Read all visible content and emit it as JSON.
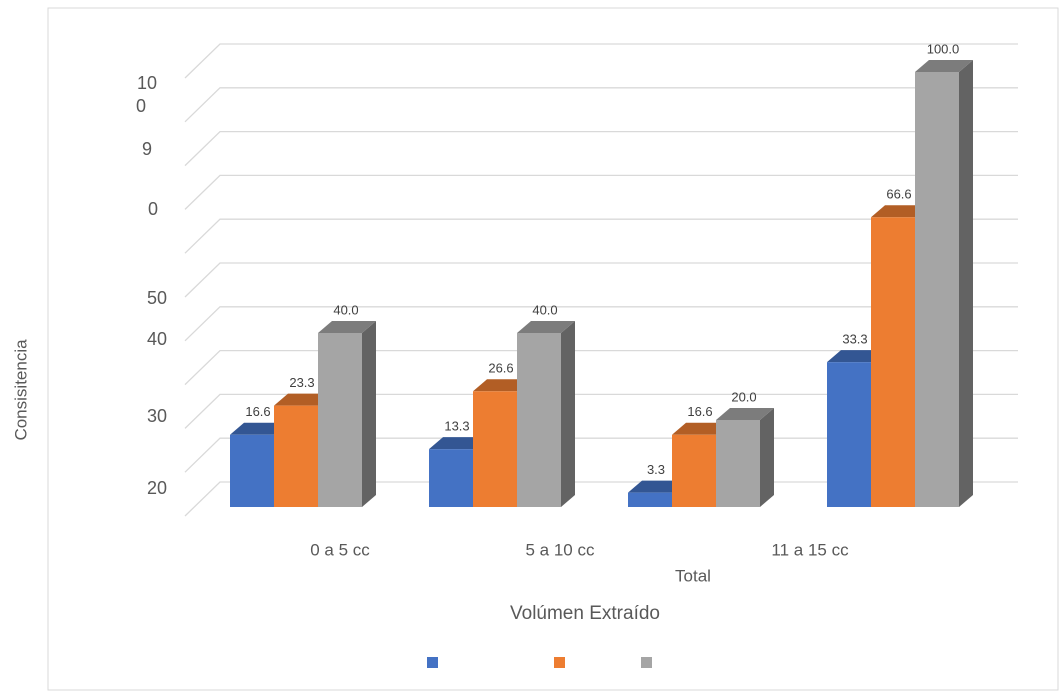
{
  "chart_data": {
    "type": "bar3d",
    "y_axis_label": "Consisitencia",
    "x_axis_label": "Volúmen Extraído",
    "categories": [
      "0 a 5 cc",
      "5 a 10 cc",
      "11 a 15 cc",
      "Total"
    ],
    "y_tick_texts": [
      "10",
      "0",
      "9",
      "0",
      "50",
      "40",
      "30",
      "20"
    ],
    "ylim": [
      0,
      100
    ],
    "yticks": [
      0,
      10,
      20,
      30,
      40,
      50,
      60,
      70,
      80,
      90,
      100
    ],
    "grid": true,
    "legend": "bottom",
    "series": [
      {
        "color": "#4472c4",
        "values": [
          16.6,
          13.3,
          3.3,
          33.3
        ],
        "value_labels": [
          "16.6",
          "13.3",
          "3.3",
          "33.3"
        ]
      },
      {
        "color": "#ed7d31",
        "values": [
          23.3,
          26.6,
          16.6,
          66.6
        ],
        "value_labels": [
          "23.3",
          "26.6",
          "16.6",
          "66.6"
        ]
      },
      {
        "color": "#a5a5a5",
        "values": [
          40,
          40,
          20,
          100
        ],
        "value_labels": [
          "40.0",
          "40.0",
          "20.0",
          "100.0"
        ]
      }
    ]
  }
}
